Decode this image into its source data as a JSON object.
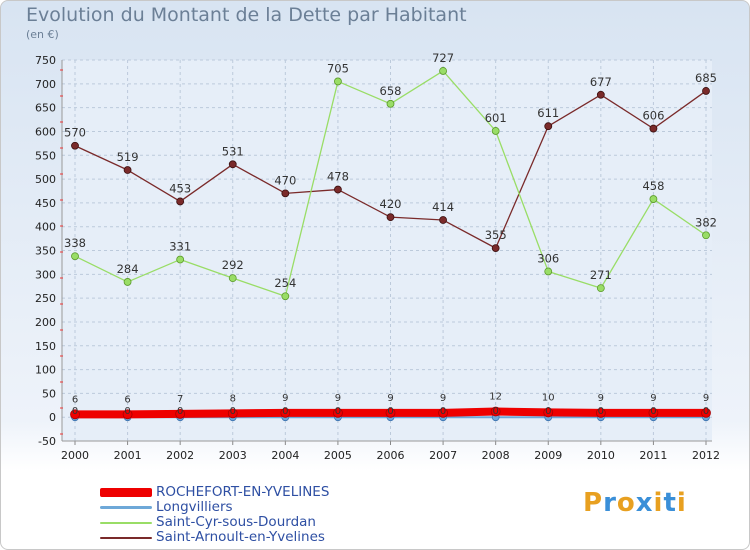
{
  "header": {
    "title": "Evolution du Montant de la Dette par Habitant",
    "subtitle": "(en €)"
  },
  "logo": {
    "text": "Proxiti"
  },
  "chart_data": {
    "type": "line",
    "x": [
      "2000",
      "2001",
      "2002",
      "2003",
      "2004",
      "2005",
      "2006",
      "2007",
      "2008",
      "2009",
      "2010",
      "2011",
      "2012"
    ],
    "ylim": [
      -50,
      750
    ],
    "yticks": [
      -50,
      0,
      50,
      100,
      150,
      200,
      250,
      300,
      350,
      400,
      450,
      500,
      550,
      600,
      650,
      700,
      750
    ],
    "grid": true,
    "legend_position": "bottom-left",
    "series": [
      {
        "name": "ROCHEFORT-EN-YVELINES",
        "color": "#ee0000",
        "values": [
          6,
          6,
          7,
          8,
          9,
          9,
          9,
          9,
          12,
          10,
          9,
          9,
          9
        ]
      },
      {
        "name": "Longvilliers",
        "color": "#6ea8d8",
        "values": [
          0,
          0,
          0,
          0,
          0,
          0,
          0,
          0,
          0,
          0,
          0,
          0,
          0
        ]
      },
      {
        "name": "Saint-Cyr-sous-Dourdan",
        "color": "#99dd66",
        "values": [
          338,
          284,
          331,
          292,
          254,
          705,
          658,
          727,
          601,
          306,
          271,
          458,
          382
        ]
      },
      {
        "name": "Saint-Arnoult-en-Yvelines",
        "color": "#7a2a2a",
        "values": [
          570,
          519,
          453,
          531,
          470,
          478,
          420,
          414,
          355,
          611,
          677,
          606,
          685
        ]
      }
    ]
  }
}
